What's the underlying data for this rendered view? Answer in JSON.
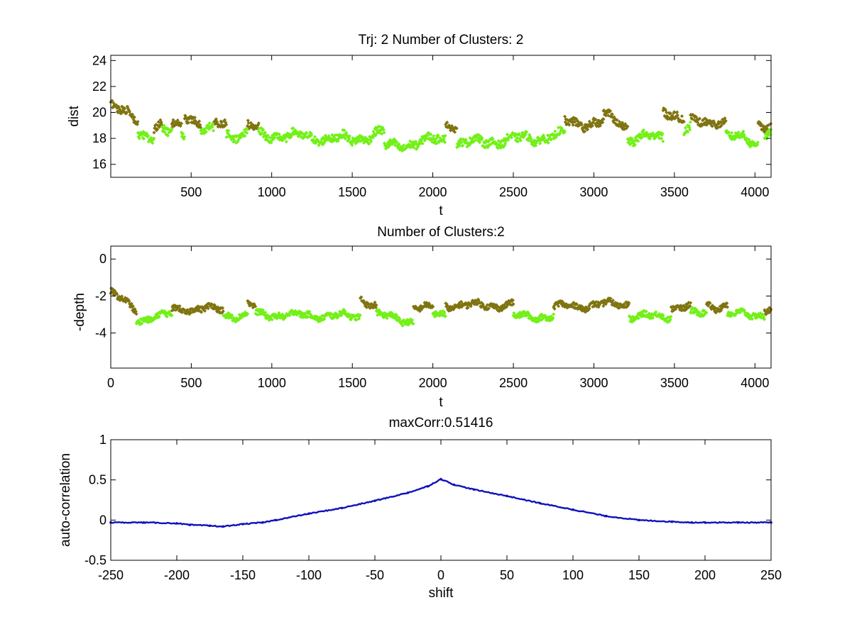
{
  "colors": {
    "cluster_a": "#7f7410",
    "cluster_b": "#73f018",
    "corr_line": "#1111bb",
    "axes": "#000000",
    "background": "#ffffff"
  },
  "chart_data": [
    {
      "type": "scatter",
      "title": "Trj: 2 Number of Clusters: 2",
      "xlabel": "t",
      "ylabel": "dist",
      "xlim": [
        1,
        4100
      ],
      "ylim": [
        15,
        24.4
      ],
      "xticks": [
        500,
        1000,
        1500,
        2000,
        2500,
        3000,
        3500,
        4000
      ],
      "yticks": [
        16,
        18,
        20,
        22,
        24
      ],
      "grid": false,
      "series": [
        {
          "name": "cluster_a",
          "color": "#7f7410",
          "segments": [
            {
              "t": [
                1,
                170
              ],
              "v": [
                20.5,
                19.4
              ]
            },
            {
              "t": [
                270,
                320
              ],
              "v": [
                18.8,
                18.9
              ]
            },
            {
              "t": [
                380,
                440
              ],
              "v": [
                19.0,
                19.2
              ]
            },
            {
              "t": [
                460,
                560
              ],
              "v": [
                20.0,
                19.0
              ]
            },
            {
              "t": [
                640,
                720
              ],
              "v": [
                19.1,
                19.3
              ]
            },
            {
              "t": [
                850,
                920
              ],
              "v": [
                18.9,
                18.8
              ]
            },
            {
              "t": [
                2080,
                2150
              ],
              "v": [
                19.3,
                19.0
              ]
            },
            {
              "t": [
                2820,
                3060
              ],
              "v": [
                19.3,
                19.1
              ]
            },
            {
              "t": [
                3060,
                3210
              ],
              "v": [
                19.8,
                18.9
              ]
            },
            {
              "t": [
                3430,
                3560
              ],
              "v": [
                20.3,
                19.5
              ]
            },
            {
              "t": [
                3600,
                3820
              ],
              "v": [
                19.2,
                19.4
              ]
            },
            {
              "t": [
                4020,
                4100
              ],
              "v": [
                19.1,
                18.9
              ]
            }
          ]
        },
        {
          "name": "cluster_b",
          "color": "#73f018",
          "segments": [
            {
              "t": [
                170,
                270
              ],
              "v": [
                18.6,
                17.9
              ]
            },
            {
              "t": [
                320,
                380
              ],
              "v": [
                18.4,
                18.4
              ]
            },
            {
              "t": [
                440,
                460
              ],
              "v": [
                18.4,
                18.4
              ]
            },
            {
              "t": [
                560,
                640
              ],
              "v": [
                18.6,
                18.5
              ]
            },
            {
              "t": [
                720,
                850
              ],
              "v": [
                18.4,
                18.2
              ]
            },
            {
              "t": [
                920,
                1500
              ],
              "v": [
                18.3,
                17.9
              ]
            },
            {
              "t": [
                1500,
                1700
              ],
              "v": [
                17.9,
                18.5
              ]
            },
            {
              "t": [
                1700,
                2080
              ],
              "v": [
                17.3,
                18.0
              ]
            },
            {
              "t": [
                2150,
                2820
              ],
              "v": [
                17.6,
                18.2
              ]
            },
            {
              "t": [
                3210,
                3430
              ],
              "v": [
                18.0,
                18.1
              ]
            },
            {
              "t": [
                3560,
                3600
              ],
              "v": [
                18.6,
                18.6
              ]
            },
            {
              "t": [
                3820,
                4020
              ],
              "v": [
                18.2,
                17.7
              ]
            },
            {
              "t": [
                4060,
                4100
              ],
              "v": [
                18.5,
                18.5
              ]
            }
          ]
        }
      ]
    },
    {
      "type": "scatter",
      "title": "Number of Clusters:2",
      "xlabel": "t",
      "ylabel": "-depth",
      "xlim": [
        0,
        4100
      ],
      "ylim": [
        -5.9,
        0.7
      ],
      "xticks": [
        0,
        500,
        1000,
        1500,
        2000,
        2500,
        3000,
        3500,
        4000
      ],
      "yticks": [
        0,
        -2,
        -4
      ],
      "grid": false,
      "series": [
        {
          "name": "cluster_a",
          "color": "#7f7410",
          "segments": [
            {
              "t": [
                0,
                160
              ],
              "v": [
                -1.8,
                -2.8
              ]
            },
            {
              "t": [
                380,
                700
              ],
              "v": [
                -2.7,
                -2.7
              ]
            },
            {
              "t": [
                850,
                900
              ],
              "v": [
                -2.5,
                -2.6
              ]
            },
            {
              "t": [
                1550,
                1650
              ],
              "v": [
                -2.1,
                -2.6
              ]
            },
            {
              "t": [
                1880,
                2000
              ],
              "v": [
                -2.6,
                -2.7
              ]
            },
            {
              "t": [
                2080,
                2500
              ],
              "v": [
                -2.5,
                -2.5
              ]
            },
            {
              "t": [
                2750,
                3220
              ],
              "v": [
                -2.6,
                -2.4
              ]
            },
            {
              "t": [
                3480,
                3600
              ],
              "v": [
                -2.6,
                -2.6
              ]
            },
            {
              "t": [
                3700,
                3830
              ],
              "v": [
                -2.5,
                -2.6
              ]
            },
            {
              "t": [
                4060,
                4100
              ],
              "v": [
                -2.7,
                -2.7
              ]
            }
          ]
        },
        {
          "name": "cluster_b",
          "color": "#73f018",
          "segments": [
            {
              "t": [
                160,
                380
              ],
              "v": [
                -3.3,
                -3.0
              ]
            },
            {
              "t": [
                700,
                850
              ],
              "v": [
                -3.0,
                -3.1
              ]
            },
            {
              "t": [
                900,
                1550
              ],
              "v": [
                -3.0,
                -3.1
              ]
            },
            {
              "t": [
                1650,
                1880
              ],
              "v": [
                -3.0,
                -3.4
              ]
            },
            {
              "t": [
                2000,
                2080
              ],
              "v": [
                -3.0,
                -3.0
              ]
            },
            {
              "t": [
                2500,
                2750
              ],
              "v": [
                -3.1,
                -3.1
              ]
            },
            {
              "t": [
                3220,
                3480
              ],
              "v": [
                -3.1,
                -3.1
              ]
            },
            {
              "t": [
                3600,
                3700
              ],
              "v": [
                -3.0,
                -2.9
              ]
            },
            {
              "t": [
                3830,
                4060
              ],
              "v": [
                -3.0,
                -3.0
              ]
            }
          ]
        }
      ]
    },
    {
      "type": "line",
      "title": "maxCorr:0.51416",
      "xlabel": "shift",
      "ylabel": "auto-correlation",
      "xlim": [
        -250,
        250
      ],
      "ylim": [
        -0.5,
        1
      ],
      "xticks": [
        -250,
        -200,
        -150,
        -100,
        -50,
        0,
        50,
        100,
        150,
        200,
        250
      ],
      "yticks": [
        -0.5,
        0,
        0.5,
        1
      ],
      "grid": false,
      "series": [
        {
          "name": "auto-correlation",
          "color": "#1111bb",
          "x": [
            -250,
            -225,
            -200,
            -190,
            -175,
            -165,
            -150,
            -135,
            -125,
            -100,
            -75,
            -50,
            -25,
            -10,
            0,
            10,
            25,
            50,
            75,
            100,
            125,
            150,
            175,
            190,
            200,
            225,
            250
          ],
          "y": [
            -0.03,
            -0.03,
            -0.04,
            -0.06,
            -0.07,
            -0.08,
            -0.05,
            -0.03,
            0.0,
            0.08,
            0.15,
            0.24,
            0.34,
            0.42,
            0.51,
            0.44,
            0.38,
            0.3,
            0.21,
            0.13,
            0.05,
            0.0,
            -0.02,
            -0.03,
            -0.03,
            -0.03,
            -0.03
          ]
        }
      ]
    }
  ]
}
